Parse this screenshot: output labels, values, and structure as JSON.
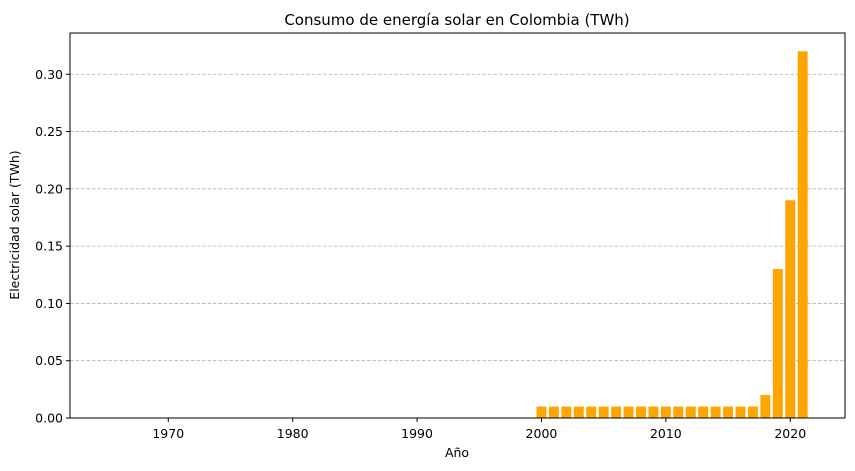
{
  "chart_data": {
    "type": "bar",
    "title": "Consumo de energía solar en Colombia (TWh)",
    "xlabel": "Año",
    "ylabel": "Electricidad solar (TWh)",
    "x": [
      2000,
      2001,
      2002,
      2003,
      2004,
      2005,
      2006,
      2007,
      2008,
      2009,
      2010,
      2011,
      2012,
      2013,
      2014,
      2015,
      2016,
      2017,
      2018,
      2019,
      2020,
      2021
    ],
    "values": [
      0.01,
      0.01,
      0.01,
      0.01,
      0.01,
      0.01,
      0.01,
      0.01,
      0.01,
      0.01,
      0.01,
      0.01,
      0.01,
      0.01,
      0.01,
      0.01,
      0.01,
      0.01,
      0.02,
      0.13,
      0.19,
      0.32
    ],
    "xlim": [
      1962.1,
      2024.4
    ],
    "ylim": [
      0,
      0.336
    ],
    "xticks": [
      1970,
      1980,
      1990,
      2000,
      2010,
      2020
    ],
    "yticks": [
      0.0,
      0.05,
      0.1,
      0.15,
      0.2,
      0.25,
      0.3
    ],
    "ytick_labels": [
      "0.00",
      "0.05",
      "0.10",
      "0.15",
      "0.20",
      "0.25",
      "0.30"
    ],
    "bar_color": "#ffa500",
    "grid": "y-dashed"
  }
}
